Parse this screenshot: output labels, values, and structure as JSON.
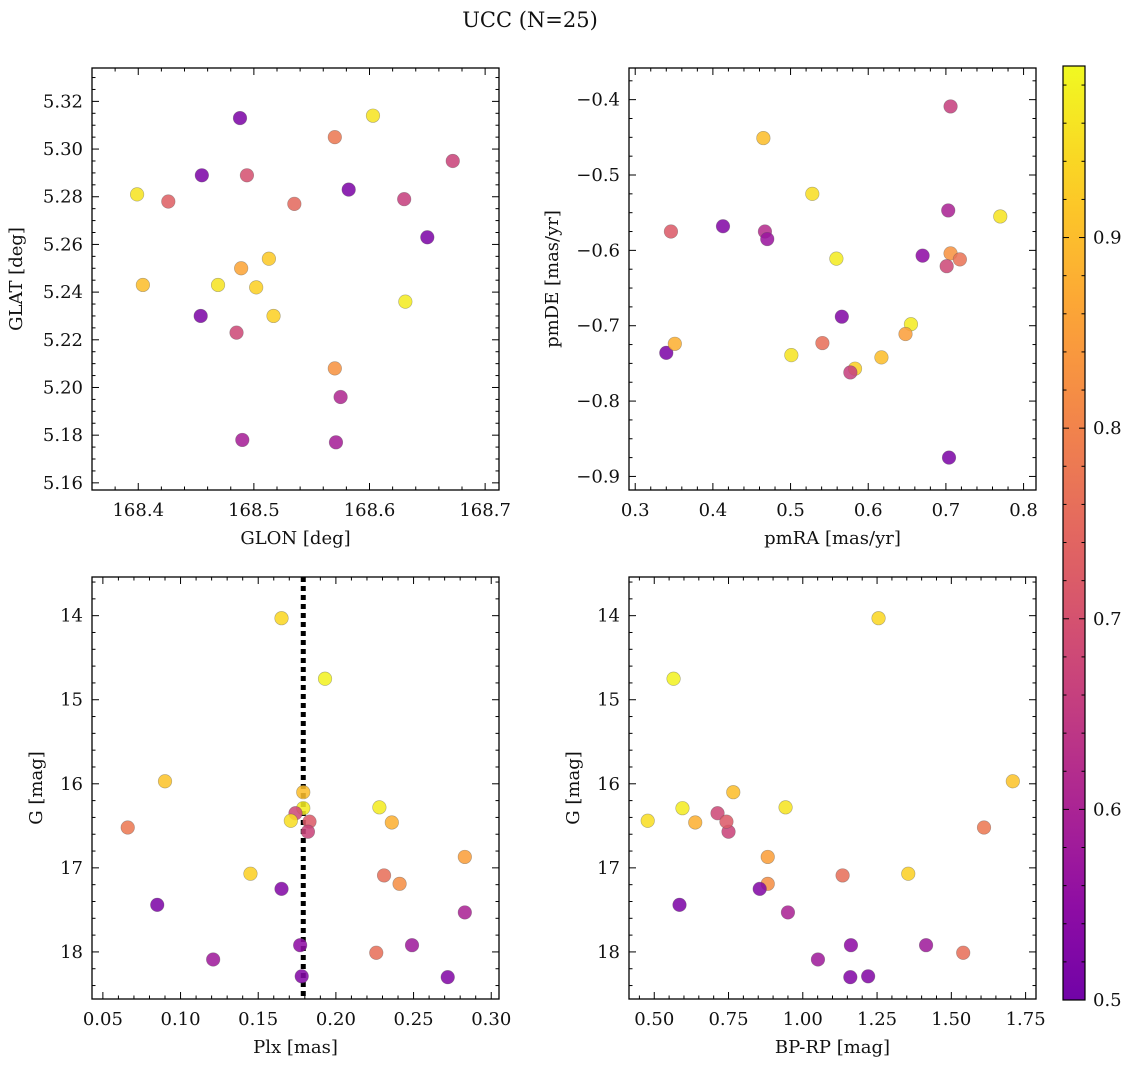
{
  "title": "UCC (N=25)",
  "colorbar": {
    "cmap": "plasma",
    "vmin": 0.5,
    "vmax": 0.99,
    "ticks": [
      0.5,
      0.6,
      0.7,
      0.8,
      0.9
    ],
    "tick_labels": [
      "0.5",
      "0.6",
      "0.7",
      "0.8",
      "0.9"
    ]
  },
  "chart_data": [
    {
      "type": "scatter",
      "xlabel": "GLON [deg]",
      "ylabel": "GLAT [deg]",
      "xlim": [
        168.36,
        168.712
      ],
      "ylim": [
        5.157,
        5.334
      ],
      "xticks": [
        168.4,
        168.5,
        168.6,
        168.7
      ],
      "xtick_labels": [
        "168.4",
        "168.5",
        "168.6",
        "168.7"
      ],
      "yticks": [
        5.16,
        5.18,
        5.2,
        5.22,
        5.24,
        5.26,
        5.28,
        5.3,
        5.32
      ],
      "ytick_labels": [
        "5.16",
        "5.18",
        "5.20",
        "5.22",
        "5.24",
        "5.26",
        "5.28",
        "5.30",
        "5.32"
      ],
      "x": [
        168.603,
        168.488,
        168.57,
        168.672,
        168.455,
        168.494,
        168.582,
        168.399,
        168.426,
        168.63,
        168.535,
        168.65,
        168.513,
        168.489,
        168.404,
        168.469,
        168.502,
        168.631,
        168.454,
        168.517,
        168.485,
        168.57,
        168.575,
        168.49,
        168.571
      ],
      "y": [
        5.314,
        5.313,
        5.305,
        5.295,
        5.289,
        5.289,
        5.283,
        5.281,
        5.278,
        5.279,
        5.277,
        5.263,
        5.254,
        5.25,
        5.243,
        5.243,
        5.242,
        5.236,
        5.23,
        5.23,
        5.223,
        5.208,
        5.196,
        5.178,
        5.177
      ],
      "color": [
        0.96,
        0.52,
        0.78,
        0.67,
        0.52,
        0.7,
        0.52,
        0.96,
        0.73,
        0.66,
        0.75,
        0.52,
        0.92,
        0.86,
        0.9,
        0.96,
        0.93,
        0.97,
        0.52,
        0.93,
        0.68,
        0.83,
        0.61,
        0.59,
        0.59
      ]
    },
    {
      "type": "scatter",
      "xlabel": "pmRA [mas/yr]",
      "ylabel": "pmDE [mas/yr]",
      "xlim": [
        0.292,
        0.816
      ],
      "ylim": [
        -0.918,
        -0.358
      ],
      "xticks": [
        0.3,
        0.4,
        0.5,
        0.6,
        0.7,
        0.8
      ],
      "xtick_labels": [
        "0.3",
        "0.4",
        "0.5",
        "0.6",
        "0.7",
        "0.8"
      ],
      "yticks": [
        -0.9,
        -0.8,
        -0.7,
        -0.6,
        -0.5,
        -0.4
      ],
      "ytick_labels": [
        "−0.9",
        "−0.8",
        "−0.7",
        "−0.6",
        "−0.5",
        "−0.4"
      ],
      "x": [
        0.706,
        0.465,
        0.528,
        0.77,
        0.703,
        0.413,
        0.467,
        0.47,
        0.346,
        0.706,
        0.718,
        0.67,
        0.701,
        0.559,
        0.566,
        0.655,
        0.648,
        0.34,
        0.351,
        0.501,
        0.541,
        0.617,
        0.583,
        0.577,
        0.704
      ],
      "y": [
        -0.409,
        -0.451,
        -0.525,
        -0.555,
        -0.547,
        -0.568,
        -0.575,
        -0.585,
        -0.575,
        -0.604,
        -0.612,
        -0.607,
        -0.621,
        -0.611,
        -0.688,
        -0.698,
        -0.711,
        -0.736,
        -0.724,
        -0.739,
        -0.723,
        -0.742,
        -0.757,
        -0.762,
        -0.875
      ],
      "color": [
        0.66,
        0.9,
        0.95,
        0.96,
        0.6,
        0.53,
        0.62,
        0.57,
        0.72,
        0.83,
        0.77,
        0.55,
        0.68,
        0.97,
        0.53,
        0.97,
        0.85,
        0.52,
        0.88,
        0.96,
        0.76,
        0.9,
        0.93,
        0.66,
        0.52
      ]
    },
    {
      "type": "scatter",
      "xlabel": "Plx [mas]",
      "ylabel": "G [mag]",
      "xlim": [
        0.043,
        0.305
      ],
      "ylim": [
        18.56,
        13.54
      ],
      "vline_x": 0.179,
      "xticks": [
        0.05,
        0.1,
        0.15,
        0.2,
        0.25,
        0.3
      ],
      "xtick_labels": [
        "0.05",
        "0.10",
        "0.15",
        "0.20",
        "0.25",
        "0.30"
      ],
      "yticks": [
        14,
        15,
        16,
        17,
        18
      ],
      "ytick_labels": [
        "14",
        "15",
        "16",
        "17",
        "18"
      ],
      "x": [
        0.165,
        0.193,
        0.09,
        0.179,
        0.179,
        0.174,
        0.171,
        0.183,
        0.182,
        0.228,
        0.236,
        0.066,
        0.283,
        0.145,
        0.231,
        0.241,
        0.165,
        0.085,
        0.283,
        0.177,
        0.249,
        0.121,
        0.226,
        0.272,
        0.178
      ],
      "y": [
        14.03,
        14.75,
        15.97,
        16.1,
        16.29,
        16.35,
        16.44,
        16.45,
        16.57,
        16.28,
        16.46,
        16.52,
        16.87,
        17.07,
        17.09,
        17.19,
        17.25,
        17.44,
        17.53,
        17.92,
        17.92,
        18.09,
        18.01,
        18.3,
        18.29
      ],
      "color": [
        0.94,
        0.98,
        0.91,
        0.9,
        0.97,
        0.68,
        0.95,
        0.72,
        0.67,
        0.97,
        0.88,
        0.78,
        0.85,
        0.93,
        0.76,
        0.82,
        0.53,
        0.52,
        0.6,
        0.55,
        0.58,
        0.58,
        0.76,
        0.53,
        0.53
      ]
    },
    {
      "type": "scatter",
      "xlabel": "BP-RP [mag]",
      "ylabel": "G [mag]",
      "xlim": [
        0.415,
        1.785
      ],
      "ylim": [
        18.56,
        13.54
      ],
      "xticks": [
        0.5,
        0.75,
        1.0,
        1.25,
        1.5,
        1.75
      ],
      "xtick_labels": [
        "0.50",
        "0.75",
        "1.00",
        "1.25",
        "1.50",
        "1.75"
      ],
      "yticks": [
        14,
        15,
        16,
        17,
        18
      ],
      "ytick_labels": [
        "14",
        "15",
        "16",
        "17",
        "18"
      ],
      "x": [
        1.255,
        0.565,
        1.707,
        0.766,
        0.595,
        0.942,
        0.478,
        0.638,
        0.713,
        0.75,
        0.743,
        1.61,
        0.882,
        1.355,
        1.134,
        0.882,
        0.855,
        0.585,
        0.95,
        1.162,
        1.415,
        1.051,
        1.54,
        1.16,
        1.22
      ],
      "y": [
        14.03,
        14.75,
        15.97,
        16.1,
        16.29,
        16.28,
        16.44,
        16.46,
        16.35,
        16.57,
        16.45,
        16.52,
        16.87,
        17.07,
        17.09,
        17.19,
        17.25,
        17.44,
        17.53,
        17.92,
        17.92,
        18.09,
        18.01,
        18.3,
        18.29
      ],
      "color": [
        0.94,
        0.98,
        0.91,
        0.9,
        0.97,
        0.96,
        0.95,
        0.88,
        0.68,
        0.67,
        0.72,
        0.78,
        0.85,
        0.93,
        0.76,
        0.82,
        0.53,
        0.52,
        0.6,
        0.55,
        0.58,
        0.58,
        0.76,
        0.53,
        0.53
      ]
    }
  ]
}
